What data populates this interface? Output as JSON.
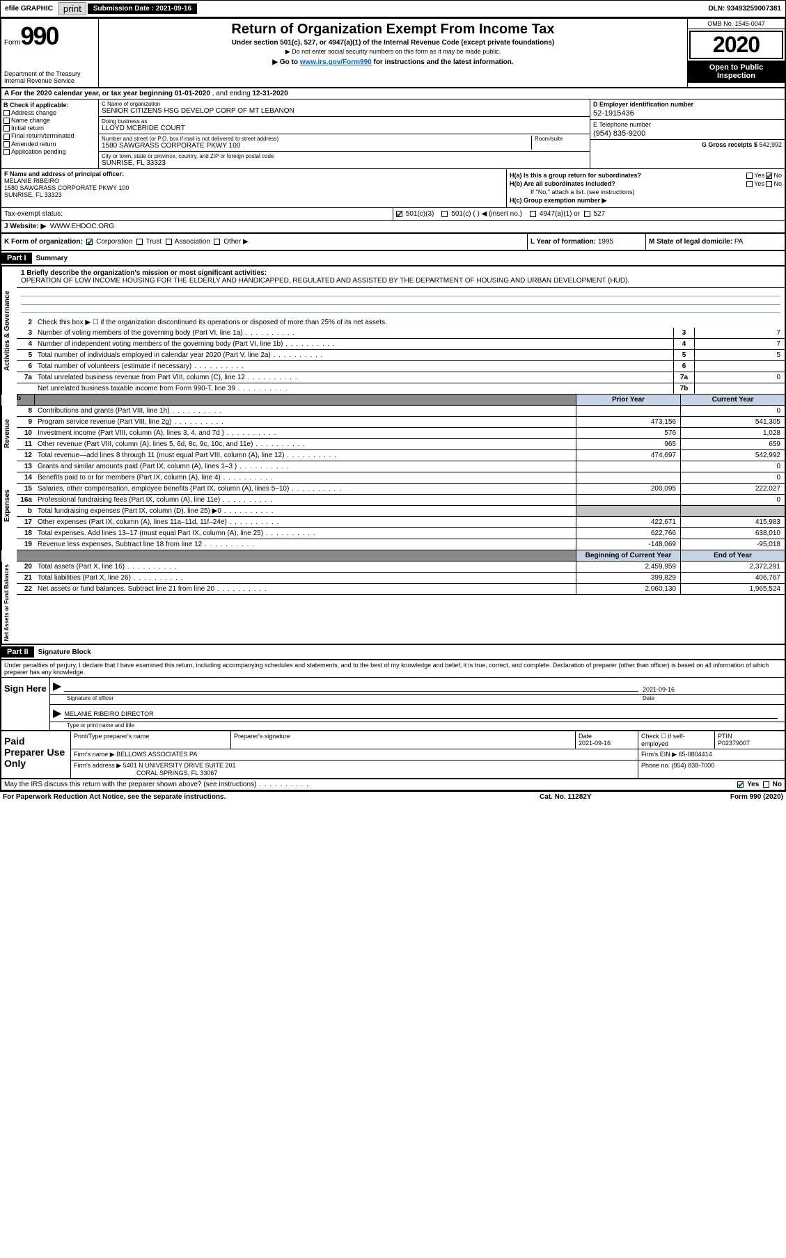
{
  "top": {
    "efile": "efile GRAPHIC",
    "print": "print",
    "sub_label": "Submission Date :",
    "sub_date": "2021-09-16",
    "dln_label": "DLN:",
    "dln": "93493259007381"
  },
  "header": {
    "form_word": "Form",
    "form_no": "990",
    "dept": "Department of the Treasury\nInternal Revenue Service",
    "title": "Return of Organization Exempt From Income Tax",
    "sub1": "Under section 501(c), 527, or 4947(a)(1) of the Internal Revenue Code (except private foundations)",
    "sub2": "▶ Do not enter social security numbers on this form as it may be made public.",
    "goto_pre": "▶ Go to ",
    "goto_link": "www.irs.gov/Form990",
    "goto_post": " for instructions and the latest information.",
    "omb": "OMB No. 1545-0047",
    "year": "2020",
    "open": "Open to Public Inspection"
  },
  "row_a": {
    "text": "A For the 2020 calendar year, or tax year beginning ",
    "begin": "01-01-2020",
    "mid": " , and ending ",
    "end": "12-31-2020"
  },
  "b": {
    "label": "B Check if applicable:",
    "items": [
      "Address change",
      "Name change",
      "Initial return",
      "Final return/terminated",
      "Amended return",
      "Application pending"
    ]
  },
  "c": {
    "name_lbl": "C Name of organization",
    "name": "SENIOR CITIZENS HSG DEVELOP CORP OF MT LEBANON",
    "dba_lbl": "Doing business as",
    "dba": "LLOYD MCBRIDE COURT",
    "addr_lbl": "Number and street (or P.O. box if mail is not delivered to street address)",
    "room_lbl": "Room/suite",
    "addr": "1580 SAWGRASS CORPORATE PKWY 100",
    "city_lbl": "City or town, state or province, country, and ZIP or foreign postal code",
    "city": "SUNRISE, FL  33323"
  },
  "d": {
    "lbl": "D Employer identification number",
    "val": "52-1915436"
  },
  "e": {
    "lbl": "E Telephone number",
    "val": "(954) 835-9200"
  },
  "g": {
    "lbl": "G Gross receipts $",
    "val": "542,992"
  },
  "f": {
    "lbl": "F Name and address of principal officer:",
    "name": "MELANIE RIBEIRO",
    "addr": "1580 SAWGRASS CORPORATE PKWY 100",
    "city": "SUNRISE, FL  33323"
  },
  "h": {
    "a": "H(a)  Is this a group return for subordinates?",
    "b": "H(b)  Are all subordinates included?",
    "note": "If \"No,\" attach a list. (see instructions)",
    "c": "H(c)  Group exemption number ▶",
    "yes": "Yes",
    "no": "No"
  },
  "i": {
    "lbl": "Tax-exempt status:",
    "opts": [
      "501(c)(3)",
      "501(c) (  ) ◀ (insert no.)",
      "4947(a)(1) or",
      "527"
    ]
  },
  "j": {
    "lbl": "J   Website: ▶",
    "val": "WWW.EHDOC.ORG"
  },
  "k": {
    "lbl": "K Form of organization:",
    "opts": [
      "Corporation",
      "Trust",
      "Association",
      "Other ▶"
    ]
  },
  "l": {
    "lbl": "L Year of formation:",
    "val": "1995"
  },
  "m": {
    "lbl": "M State of legal domicile:",
    "val": "PA"
  },
  "part1": {
    "label": "Part I",
    "title": "Summary",
    "q1": "1  Briefly describe the organization's mission or most significant activities:",
    "mission": "OPERATION OF LOW INCOME HOUSING FOR THE ELDERLY AND HANDICAPPED, REGULATED AND ASSISTED BY THE DEPARTMENT OF HOUSING AND URBAN DEVELOPMENT (HUD).",
    "q2": "Check this box ▶ ☐  if the organization discontinued its operations or disposed of more than 25% of its net assets.",
    "gov_tab": "Activities & Governance",
    "rev_tab": "Revenue",
    "exp_tab": "Expenses",
    "net_tab": "Net Assets or Fund Balances",
    "lines_gov": [
      {
        "n": "3",
        "t": "Number of voting members of the governing body (Part VI, line 1a)",
        "bn": "3",
        "v": "7"
      },
      {
        "n": "4",
        "t": "Number of independent voting members of the governing body (Part VI, line 1b)",
        "bn": "4",
        "v": "7"
      },
      {
        "n": "5",
        "t": "Total number of individuals employed in calendar year 2020 (Part V, line 2a)",
        "bn": "5",
        "v": "5"
      },
      {
        "n": "6",
        "t": "Total number of volunteers (estimate if necessary)",
        "bn": "6",
        "v": ""
      },
      {
        "n": "7a",
        "t": "Total unrelated business revenue from Part VIII, column (C), line 12",
        "bn": "7a",
        "v": "0"
      },
      {
        "n": "",
        "t": "Net unrelated business taxable income from Form 990-T, line 39",
        "bn": "7b",
        "v": ""
      }
    ],
    "py_label": "Prior Year",
    "cy_label": "Current Year",
    "lines_rev": [
      {
        "n": "8",
        "t": "Contributions and grants (Part VIII, line 1h)",
        "py": "",
        "cy": "0"
      },
      {
        "n": "9",
        "t": "Program service revenue (Part VIII, line 2g)",
        "py": "473,156",
        "cy": "541,305"
      },
      {
        "n": "10",
        "t": "Investment income (Part VIII, column (A), lines 3, 4, and 7d )",
        "py": "576",
        "cy": "1,028"
      },
      {
        "n": "11",
        "t": "Other revenue (Part VIII, column (A), lines 5, 6d, 8c, 9c, 10c, and 11e)",
        "py": "965",
        "cy": "659"
      },
      {
        "n": "12",
        "t": "Total revenue—add lines 8 through 11 (must equal Part VIII, column (A), line 12)",
        "py": "474,697",
        "cy": "542,992"
      }
    ],
    "lines_exp": [
      {
        "n": "13",
        "t": "Grants and similar amounts paid (Part IX, column (A), lines 1–3 )",
        "py": "",
        "cy": "0"
      },
      {
        "n": "14",
        "t": "Benefits paid to or for members (Part IX, column (A), line 4)",
        "py": "",
        "cy": "0"
      },
      {
        "n": "15",
        "t": "Salaries, other compensation, employee benefits (Part IX, column (A), lines 5–10)",
        "py": "200,095",
        "cy": "222,027"
      },
      {
        "n": "16a",
        "t": "Professional fundraising fees (Part IX, column (A), line 11e)",
        "py": "",
        "cy": "0"
      },
      {
        "n": "b",
        "t": "Total fundraising expenses (Part IX, column (D), line 25) ▶0",
        "py": "shade",
        "cy": "shade"
      },
      {
        "n": "17",
        "t": "Other expenses (Part IX, column (A), lines 11a–11d, 11f–24e)",
        "py": "422,671",
        "cy": "415,983"
      },
      {
        "n": "18",
        "t": "Total expenses. Add lines 13–17 (must equal Part IX, column (A), line 25)",
        "py": "622,766",
        "cy": "638,010"
      },
      {
        "n": "19",
        "t": "Revenue less expenses. Subtract line 18 from line 12",
        "py": "-148,069",
        "cy": "-95,018"
      }
    ],
    "bcy_label": "Beginning of Current Year",
    "eoy_label": "End of Year",
    "lines_net": [
      {
        "n": "20",
        "t": "Total assets (Part X, line 16)",
        "py": "2,459,959",
        "cy": "2,372,291"
      },
      {
        "n": "21",
        "t": "Total liabilities (Part X, line 26)",
        "py": "399,829",
        "cy": "406,767"
      },
      {
        "n": "22",
        "t": "Net assets or fund balances. Subtract line 21 from line 20",
        "py": "2,060,130",
        "cy": "1,965,524"
      }
    ]
  },
  "part2": {
    "label": "Part II",
    "title": "Signature Block",
    "decl": "Under penalties of perjury, I declare that I have examined this return, including accompanying schedules and statements, and to the best of my knowledge and belief, it is true, correct, and complete. Declaration of preparer (other than officer) is based on all information of which preparer has any knowledge.",
    "sign_here": "Sign Here",
    "sig_officer_lbl": "Signature of officer",
    "sig_date": "2021-09-16",
    "date_lbl": "Date",
    "officer_name": "MELANIE RIBEIRO  DIRECTOR",
    "type_lbl": "Type or print name and title"
  },
  "prep": {
    "label": "Paid Preparer Use Only",
    "h1": "Print/Type preparer's name",
    "h2": "Preparer's signature",
    "h3": "Date",
    "h3v": "2021-09-16",
    "h4": "Check ☐ if self-employed",
    "h5": "PTIN",
    "h5v": "P02379007",
    "firm_name_lbl": "Firm's name    ▶",
    "firm_name": "BELLOWS ASSOCIATES PA",
    "firm_ein_lbl": "Firm's EIN ▶",
    "firm_ein": "65-0804414",
    "firm_addr_lbl": "Firm's address ▶",
    "firm_addr1": "5401 N UNIVERSITY DRIVE SUITE 201",
    "firm_addr2": "CORAL SPRINGS, FL  33067",
    "phone_lbl": "Phone no.",
    "phone": "(954) 838-7000"
  },
  "footer": {
    "discuss": "May the IRS discuss this return with the preparer shown above? (see instructions)",
    "yes": "Yes",
    "no": "No",
    "pra": "For Paperwork Reduction Act Notice, see the separate instructions.",
    "cat": "Cat. No. 11282Y",
    "form": "Form 990 (2020)"
  }
}
